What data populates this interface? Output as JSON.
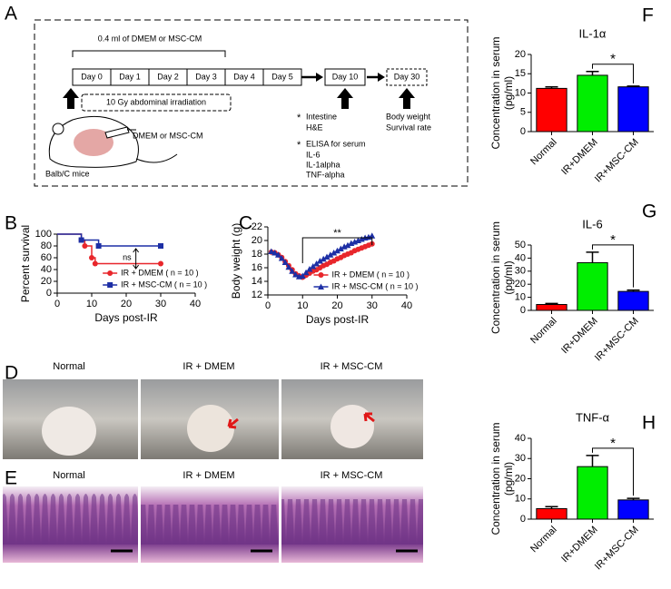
{
  "panel_labels": [
    "A",
    "B",
    "C",
    "D",
    "E",
    "F",
    "G",
    "H"
  ],
  "schematic": {
    "dose_note": "0.4 ml of DMEM or MSC-CM",
    "days": [
      "Day 0",
      "Day 1",
      "Day 2",
      "Day 3",
      "Day 4",
      "Day 5"
    ],
    "day10": "Day 10",
    "day30": "Day 30",
    "irradiation": "10 Gy abdominal irradiation",
    "injection": "DMEM or MSC-CM",
    "mouse": "Balb/C mice",
    "bullet": "*",
    "day10_readouts": [
      "Intestine",
      "H&E"
    ],
    "elisa": "ELISA for serum",
    "elisa_items": [
      "IL-6",
      "IL-1alpha",
      "TNF-alpha"
    ],
    "day30_readouts": [
      "Body weight",
      "Survival rate"
    ]
  },
  "photos": {
    "D": {
      "labels": [
        "Normal",
        "IR + DMEM",
        "IR + MSC-CM"
      ]
    },
    "E": {
      "labels": [
        "Normal",
        "IR + DMEM",
        "IR + MSC-CM"
      ]
    }
  },
  "chart_data": [
    {
      "type": "step",
      "xlabel": "Days post-IR",
      "ylabel": "Percent survival",
      "xlim": [
        0,
        40
      ],
      "xticks": [
        0,
        10,
        20,
        30,
        40
      ],
      "ylim": [
        0,
        100
      ],
      "yticks": [
        0,
        20,
        40,
        60,
        80,
        100
      ],
      "grid": false,
      "annotation": "ns",
      "series": [
        {
          "name": "IR + DMEM ( n = 10 )",
          "color": "#e8262b",
          "marker": "circle",
          "x": [
            0,
            7,
            8,
            10,
            11,
            30
          ],
          "values": [
            100,
            90,
            80,
            60,
            50,
            50
          ]
        },
        {
          "name": "IR + MSC-CM ( n = 10 )",
          "color": "#1d2fa5",
          "marker": "square",
          "x": [
            0,
            7,
            12,
            30
          ],
          "values": [
            100,
            90,
            80,
            80
          ]
        }
      ]
    },
    {
      "type": "line",
      "xlabel": "Days post-IR",
      "ylabel": "Body weight (g)",
      "xlim": [
        0,
        40
      ],
      "xticks": [
        0,
        10,
        20,
        30,
        40
      ],
      "ylim": [
        12,
        22
      ],
      "yticks": [
        12,
        14,
        16,
        18,
        20,
        22
      ],
      "grid": false,
      "annotation": "**",
      "x": [
        1,
        2,
        3,
        4,
        5,
        6,
        7,
        8,
        9,
        10,
        11,
        12,
        13,
        14,
        15,
        16,
        17,
        18,
        19,
        20,
        21,
        22,
        23,
        24,
        25,
        26,
        27,
        28,
        29,
        30
      ],
      "series": [
        {
          "name": "IR + DMEM ( n = 10 )",
          "color": "#e8262b",
          "marker": "circle",
          "values": [
            18.3,
            18.2,
            17.9,
            17.5,
            16.9,
            16.3,
            15.7,
            15.1,
            14.8,
            14.6,
            14.9,
            15.2,
            15.5,
            15.7,
            16.0,
            16.3,
            16.5,
            16.8,
            17.0,
            17.3,
            17.5,
            17.8,
            18.0,
            18.2,
            18.5,
            18.7,
            18.9,
            19.1,
            19.3,
            19.5
          ]
        },
        {
          "name": "IR + MSC-CM ( n = 10 )",
          "color": "#1d2fa5",
          "marker": "triangle",
          "values": [
            18.4,
            18.2,
            17.9,
            17.4,
            16.8,
            16.1,
            15.5,
            15.0,
            14.7,
            14.8,
            15.3,
            15.8,
            16.2,
            16.6,
            17.0,
            17.3,
            17.6,
            17.9,
            18.2,
            18.5,
            18.8,
            19.1,
            19.3,
            19.6,
            19.8,
            20.0,
            20.2,
            20.4,
            20.5,
            20.7
          ]
        }
      ]
    },
    {
      "type": "bar",
      "title": "IL-1α",
      "ylabel": [
        "Concentration in serum",
        "(pg/ml)"
      ],
      "categories": [
        "Normal",
        "IR+DMEM",
        "IR+MSC-CM"
      ],
      "values": [
        11.2,
        14.6,
        11.6
      ],
      "errors": [
        0.4,
        1.0,
        0.2
      ],
      "colors": [
        "#ff0000",
        "#00ee00",
        "#0000ff"
      ],
      "ylim": [
        0,
        20
      ],
      "yticks": [
        0,
        5,
        10,
        15,
        20
      ],
      "grid": false,
      "annotation": "*"
    },
    {
      "type": "bar",
      "title": "IL-6",
      "ylabel": [
        "Concentration in serum",
        "(pg/ml)"
      ],
      "categories": [
        "Normal",
        "IR+DMEM",
        "IR+MSC-CM"
      ],
      "values": [
        4.5,
        36.5,
        14.5
      ],
      "errors": [
        0.8,
        8.0,
        1.0
      ],
      "colors": [
        "#ff0000",
        "#00ee00",
        "#0000ff"
      ],
      "ylim": [
        0,
        50
      ],
      "yticks": [
        0,
        10,
        20,
        30,
        40,
        50
      ],
      "grid": false,
      "annotation": "*"
    },
    {
      "type": "bar",
      "title": "TNF-α",
      "ylabel": [
        "Concentration in serum",
        "(pg/ml)"
      ],
      "categories": [
        "Normal",
        "IR+DMEM",
        "IR+MSC-CM"
      ],
      "values": [
        5.2,
        26.0,
        9.5
      ],
      "errors": [
        1.0,
        5.5,
        0.8
      ],
      "colors": [
        "#ff0000",
        "#00ee00",
        "#0000ff"
      ],
      "ylim": [
        0,
        40
      ],
      "yticks": [
        0,
        10,
        20,
        30,
        40
      ],
      "grid": false,
      "annotation": "*"
    }
  ]
}
